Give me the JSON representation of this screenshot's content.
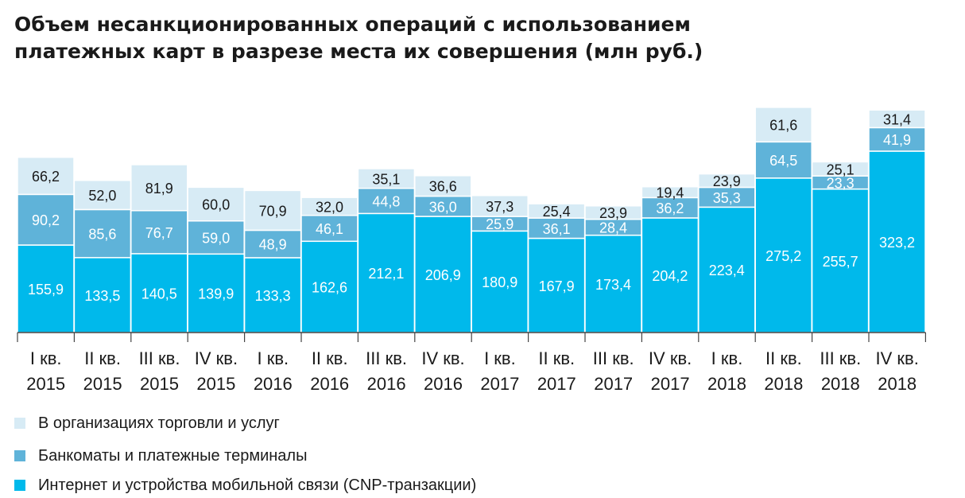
{
  "title_lines": [
    "Объем несанкционированных операций с использованием",
    "платежных карт в разрезе места их совершения (млн руб.)"
  ],
  "colors": {
    "cnp": "#00b9eb",
    "atm": "#5fb3d9",
    "trade": "#d7ebf5",
    "label_light": "#ffffff",
    "label_dark": "#1a1a1a",
    "axis": "#444444"
  },
  "chart_data": {
    "type": "bar",
    "stacked": true,
    "categories": [
      [
        "I кв.",
        "2015"
      ],
      [
        "II кв.",
        "2015"
      ],
      [
        "III кв.",
        "2015"
      ],
      [
        "IV кв.",
        "2015"
      ],
      [
        "I кв.",
        "2016"
      ],
      [
        "II кв.",
        "2016"
      ],
      [
        "III кв.",
        "2016"
      ],
      [
        "IV кв.",
        "2016"
      ],
      [
        "I кв.",
        "2017"
      ],
      [
        "II кв.",
        "2017"
      ],
      [
        "III кв.",
        "2017"
      ],
      [
        "IV кв.",
        "2017"
      ],
      [
        "I кв.",
        "2018"
      ],
      [
        "II кв.",
        "2018"
      ],
      [
        "III кв.",
        "2018"
      ],
      [
        "IV кв.",
        "2018"
      ]
    ],
    "series": [
      {
        "name": "Интернет и устройства мобильной связи (CNP-транзакции)",
        "color_key": "cnp",
        "label_color_key": "label_light",
        "values": [
          155.9,
          133.5,
          140.5,
          139.9,
          133.3,
          162.6,
          212.1,
          206.9,
          180.9,
          167.9,
          173.4,
          204.2,
          223.4,
          275.2,
          255.7,
          323.2
        ],
        "labels": [
          "155,9",
          "133,5",
          "140,5",
          "139,9",
          "133,3",
          "162,6",
          "212,1",
          "206,9",
          "180,9",
          "167,9",
          "173,4",
          "204,2",
          "223,4",
          "275,2",
          "255,7",
          "323,2"
        ]
      },
      {
        "name": "Банкоматы и платежные терминалы",
        "color_key": "atm",
        "label_color_key": "label_light",
        "values": [
          90.2,
          85.6,
          76.7,
          59.0,
          48.9,
          46.1,
          44.8,
          36.0,
          25.9,
          36.1,
          28.4,
          36.2,
          35.3,
          64.5,
          23.3,
          41.9
        ],
        "labels": [
          "90,2",
          "85,6",
          "76,7",
          "59,0",
          "48,9",
          "46,1",
          "44,8",
          "36,0",
          "25,9",
          "36,1",
          "28,4",
          "36,2",
          "35,3",
          "64,5",
          "23,3",
          "41,9"
        ]
      },
      {
        "name": "В организациях торговли и услуг",
        "color_key": "trade",
        "label_color_key": "label_dark",
        "values": [
          66.2,
          52.0,
          81.9,
          60.0,
          70.9,
          32.0,
          35.1,
          36.6,
          37.3,
          25.4,
          23.9,
          19.4,
          23.9,
          61.6,
          25.1,
          31.4
        ],
        "labels": [
          "66,2",
          "52,0",
          "81,9",
          "60,0",
          "70,9",
          "32,0",
          "35,1",
          "36,6",
          "37,3",
          "25,4",
          "23,9",
          "19,4",
          "23,9",
          "61,6",
          "25,1",
          "31,4"
        ]
      }
    ],
    "ylim": [
      0,
      420
    ]
  },
  "legend": [
    {
      "label": "В организациях торговли и услуг",
      "color_key": "trade"
    },
    {
      "label": "Банкоматы и платежные терминалы",
      "color_key": "atm"
    },
    {
      "label": "Интернет и устройства мобильной связи (CNP-транзакции)",
      "color_key": "cnp"
    }
  ]
}
